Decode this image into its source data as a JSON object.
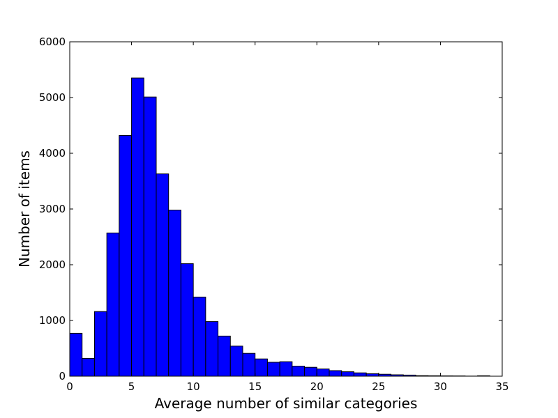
{
  "chart_data": {
    "type": "bar",
    "title": "",
    "xlabel": "Average number of similar categories",
    "ylabel": "Number of items",
    "xlim": [
      0,
      35
    ],
    "ylim": [
      0,
      6000
    ],
    "xticks": [
      0,
      5,
      10,
      15,
      20,
      25,
      30,
      35
    ],
    "yticks": [
      0,
      1000,
      2000,
      3000,
      4000,
      5000,
      6000
    ],
    "bar_color": "#0000ff",
    "edge_color": "#000000",
    "grid": false,
    "bins": [
      {
        "x0": 0.0,
        "x1": 1.0,
        "value": 770
      },
      {
        "x0": 1.0,
        "x1": 2.0,
        "value": 320
      },
      {
        "x0": 2.0,
        "x1": 3.0,
        "value": 1160
      },
      {
        "x0": 3.0,
        "x1": 4.0,
        "value": 2570
      },
      {
        "x0": 4.0,
        "x1": 5.0,
        "value": 4320
      },
      {
        "x0": 5.0,
        "x1": 6.0,
        "value": 5350
      },
      {
        "x0": 6.0,
        "x1": 7.0,
        "value": 5010
      },
      {
        "x0": 7.0,
        "x1": 8.0,
        "value": 3630
      },
      {
        "x0": 8.0,
        "x1": 9.0,
        "value": 2980
      },
      {
        "x0": 9.0,
        "x1": 10.0,
        "value": 2020
      },
      {
        "x0": 10.0,
        "x1": 11.0,
        "value": 1420
      },
      {
        "x0": 11.0,
        "x1": 12.0,
        "value": 980
      },
      {
        "x0": 12.0,
        "x1": 13.0,
        "value": 720
      },
      {
        "x0": 13.0,
        "x1": 14.0,
        "value": 540
      },
      {
        "x0": 14.0,
        "x1": 15.0,
        "value": 410
      },
      {
        "x0": 15.0,
        "x1": 16.0,
        "value": 310
      },
      {
        "x0": 16.0,
        "x1": 17.0,
        "value": 250
      },
      {
        "x0": 17.0,
        "x1": 18.0,
        "value": 260
      },
      {
        "x0": 18.0,
        "x1": 19.0,
        "value": 180
      },
      {
        "x0": 19.0,
        "x1": 20.0,
        "value": 160
      },
      {
        "x0": 20.0,
        "x1": 21.0,
        "value": 130
      },
      {
        "x0": 21.0,
        "x1": 22.0,
        "value": 100
      },
      {
        "x0": 22.0,
        "x1": 23.0,
        "value": 80
      },
      {
        "x0": 23.0,
        "x1": 24.0,
        "value": 60
      },
      {
        "x0": 24.0,
        "x1": 25.0,
        "value": 45
      },
      {
        "x0": 25.0,
        "x1": 26.0,
        "value": 35
      },
      {
        "x0": 26.0,
        "x1": 27.0,
        "value": 25
      },
      {
        "x0": 27.0,
        "x1": 28.0,
        "value": 20
      },
      {
        "x0": 28.0,
        "x1": 29.0,
        "value": 10
      },
      {
        "x0": 29.0,
        "x1": 30.0,
        "value": 8
      },
      {
        "x0": 30.0,
        "x1": 31.0,
        "value": 6
      },
      {
        "x0": 31.0,
        "x1": 32.0,
        "value": 5
      },
      {
        "x0": 32.0,
        "x1": 33.0,
        "value": 2
      },
      {
        "x0": 33.0,
        "x1": 34.0,
        "value": 8
      }
    ]
  }
}
